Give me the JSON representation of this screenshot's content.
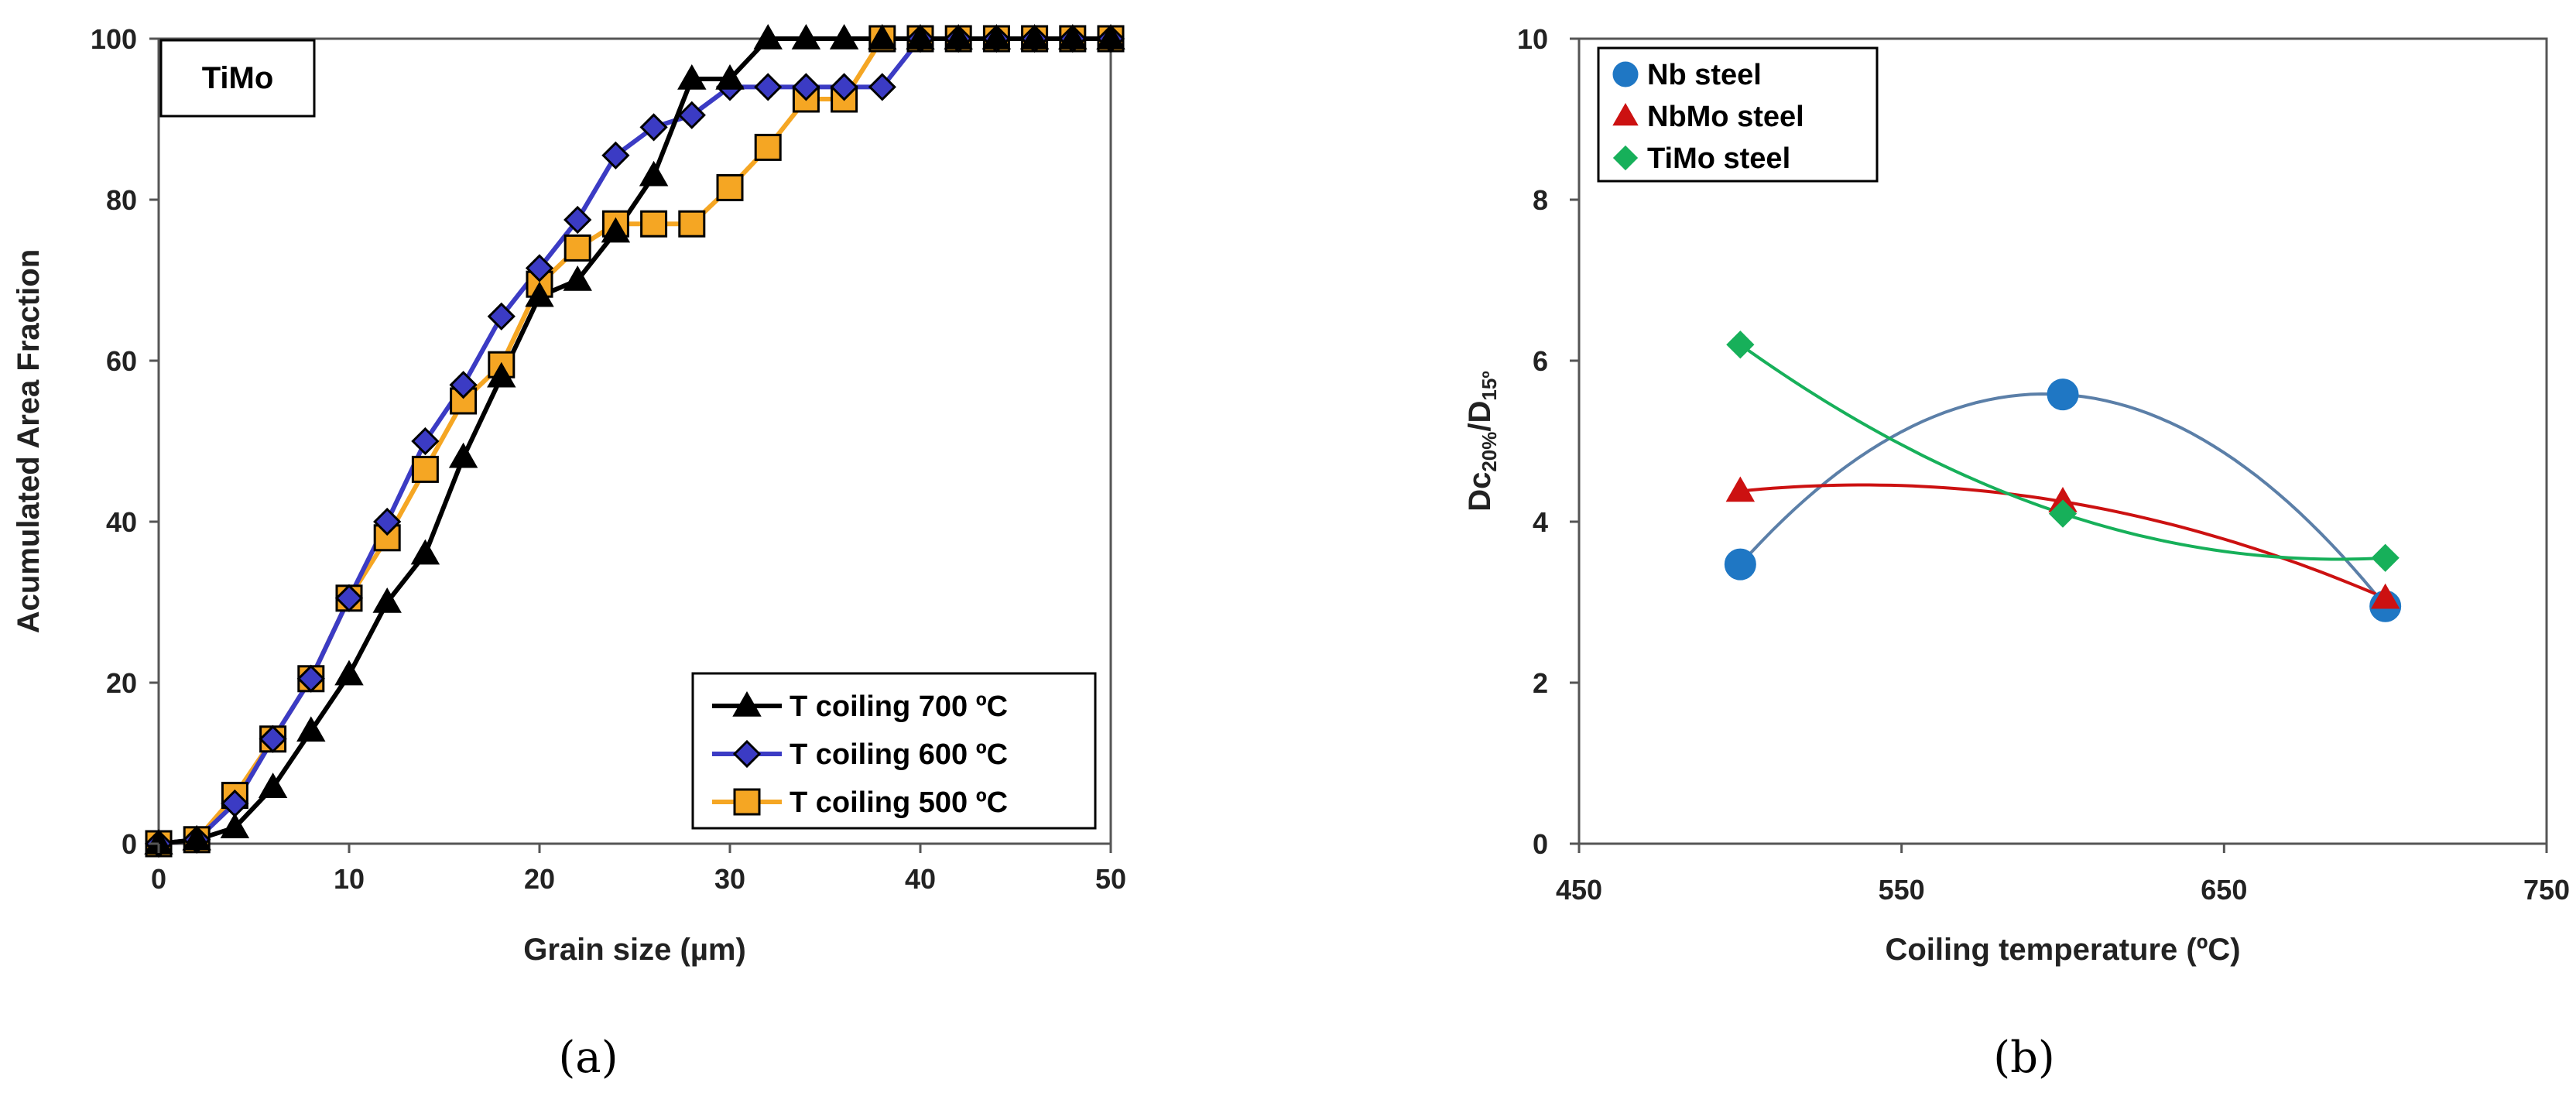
{
  "chart_data": [
    {
      "type": "line",
      "panel_label": "(a)",
      "inset_label": "TiMo",
      "xlabel": "Grain size (µm)",
      "ylabel": "Acumulated Area Fraction",
      "xlim": [
        0,
        50
      ],
      "ylim": [
        0,
        100
      ],
      "xticks": [
        "0",
        "10",
        "20",
        "30",
        "40",
        "50"
      ],
      "yticks": [
        "0",
        "20",
        "40",
        "60",
        "80",
        "100"
      ],
      "legend_position": "bottom-right",
      "series": [
        {
          "name": "T coiling 700 ºC",
          "color": "#000000",
          "marker": "triangle",
          "x": [
            0,
            2,
            4,
            6,
            8,
            10,
            12,
            14,
            16,
            18,
            20,
            22,
            24,
            26,
            28,
            30,
            32,
            34,
            36,
            38,
            40,
            42,
            44,
            46,
            48,
            50
          ],
          "y": [
            0,
            0.5,
            2,
            7,
            14,
            21,
            30,
            36,
            48,
            58,
            68,
            70,
            76,
            83,
            95,
            95,
            100,
            100,
            100,
            100,
            100,
            100,
            100,
            100,
            100,
            100
          ]
        },
        {
          "name": "T coiling 600 ºC",
          "color": "#3b3bc4",
          "marker": "diamond",
          "x": [
            0,
            2,
            4,
            6,
            8,
            10,
            12,
            14,
            16,
            18,
            20,
            22,
            24,
            26,
            28,
            30,
            32,
            34,
            36,
            38,
            40,
            42,
            44,
            46,
            48,
            50
          ],
          "y": [
            0,
            0.5,
            5,
            13,
            20.5,
            30.5,
            40,
            50,
            57,
            65.5,
            71.5,
            77.5,
            85.5,
            89,
            90.5,
            94,
            94,
            94,
            94,
            94,
            100,
            100,
            100,
            100,
            100,
            100
          ]
        },
        {
          "name": "T coiling 500 ºC",
          "color": "#f5a623",
          "marker": "square",
          "x": [
            0,
            2,
            4,
            6,
            8,
            10,
            12,
            14,
            16,
            18,
            20,
            22,
            24,
            26,
            28,
            30,
            32,
            34,
            36,
            38,
            40,
            42,
            44,
            46,
            48,
            50
          ],
          "y": [
            0,
            0.5,
            6,
            13,
            20.5,
            30.5,
            38,
            46.5,
            55,
            59.5,
            69.5,
            74,
            77,
            77,
            77,
            81.5,
            86.5,
            92.5,
            92.5,
            100,
            100,
            100,
            100,
            100,
            100,
            100
          ]
        }
      ]
    },
    {
      "type": "scatter",
      "panel_label": "(b)",
      "xlabel": "Coiling temperature (ºC)",
      "ylabel_main": "Dc",
      "ylabel_sub1": "20%",
      "ylabel_mid": "/D",
      "ylabel_sub2": "15º",
      "xlim": [
        450,
        750
      ],
      "ylim": [
        0,
        10
      ],
      "xticks": [
        "450",
        "550",
        "650",
        "750"
      ],
      "yticks": [
        "0",
        "2",
        "4",
        "6",
        "8",
        "10"
      ],
      "legend_position": "top-left",
      "series": [
        {
          "name": "Nb steel",
          "color": "#1f77c4",
          "line_color": "#5b7fa8",
          "marker": "circle",
          "x": [
            500,
            600,
            700
          ],
          "y": [
            3.47,
            5.58,
            2.95
          ]
        },
        {
          "name": "NbMo steel",
          "color": "#cc1111",
          "line_color": "#cc1111",
          "marker": "triangle",
          "x": [
            500,
            600,
            700
          ],
          "y": [
            4.38,
            4.25,
            3.05
          ]
        },
        {
          "name": "TiMo steel",
          "color": "#17b05a",
          "line_color": "#17b05a",
          "marker": "diamond",
          "x": [
            500,
            600,
            700
          ],
          "y": [
            6.2,
            4.1,
            3.55
          ]
        }
      ]
    }
  ]
}
